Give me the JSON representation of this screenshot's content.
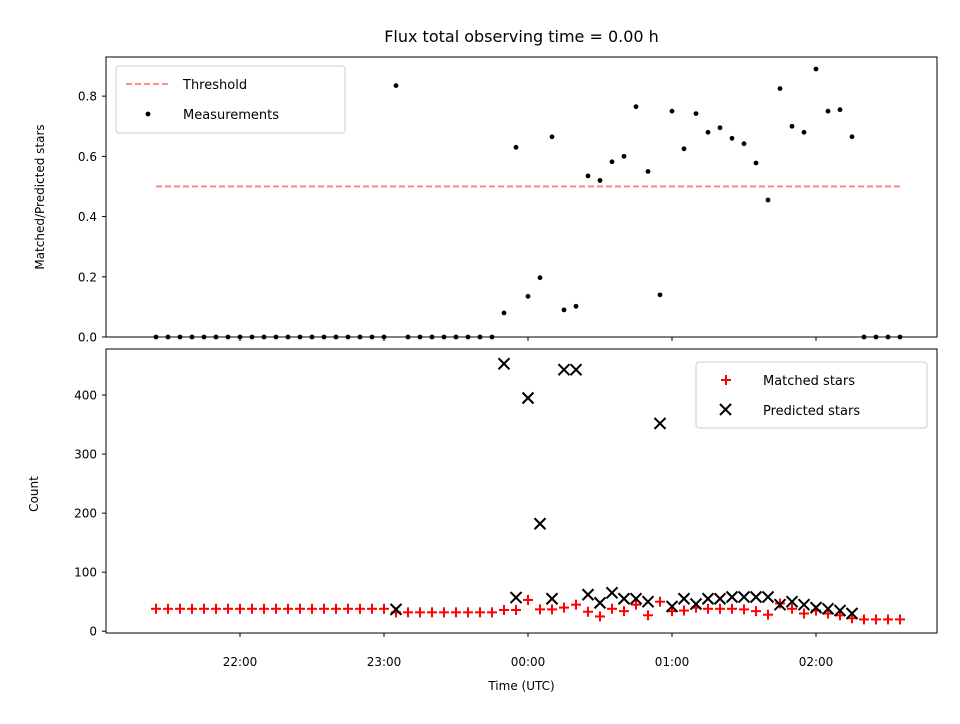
{
  "chart_data": {
    "type": "scatter",
    "title": "Flux total observing time = 0.00 h",
    "xlabel": "Time (UTC)",
    "x_ticks": [
      "22:00",
      "23:00",
      "00:00",
      "01:00",
      "02:00"
    ],
    "colors": {
      "threshold": "#ff7f7f",
      "measurements": "#000000",
      "matched": "#ff0000",
      "predicted": "#000000"
    },
    "top": {
      "ylabel": "Matched/Predicted stars",
      "ylim": [
        0,
        0.93
      ],
      "y_ticks": [
        "0.0",
        "0.2",
        "0.4",
        "0.6",
        "0.8"
      ],
      "legend": {
        "position": "upper-left",
        "entries": [
          "Threshold",
          "Measurements"
        ]
      },
      "threshold": {
        "value": 0.5,
        "x_start": "21:25",
        "x_end": "02:35"
      },
      "measurements": [
        [
          "21:25",
          0
        ],
        [
          "21:30",
          0
        ],
        [
          "21:35",
          0
        ],
        [
          "21:40",
          0
        ],
        [
          "21:45",
          0
        ],
        [
          "21:50",
          0
        ],
        [
          "21:55",
          0
        ],
        [
          "22:00",
          0
        ],
        [
          "22:05",
          0
        ],
        [
          "22:10",
          0
        ],
        [
          "22:15",
          0
        ],
        [
          "22:20",
          0
        ],
        [
          "22:25",
          0
        ],
        [
          "22:30",
          0
        ],
        [
          "22:35",
          0
        ],
        [
          "22:40",
          0
        ],
        [
          "22:45",
          0
        ],
        [
          "22:50",
          0
        ],
        [
          "22:55",
          0
        ],
        [
          "23:00",
          0
        ],
        [
          "23:05",
          0.835
        ],
        [
          "23:10",
          0
        ],
        [
          "23:15",
          0
        ],
        [
          "23:20",
          0
        ],
        [
          "23:25",
          0
        ],
        [
          "23:30",
          0
        ],
        [
          "23:35",
          0
        ],
        [
          "23:40",
          0
        ],
        [
          "23:45",
          0
        ],
        [
          "23:50",
          0.08
        ],
        [
          "23:55",
          0.63
        ],
        [
          "00:00",
          0.135
        ],
        [
          "00:05",
          0.197
        ],
        [
          "00:10",
          0.665
        ],
        [
          "00:15",
          0.09
        ],
        [
          "00:20",
          0.102
        ],
        [
          "00:25",
          0.535
        ],
        [
          "00:30",
          0.52
        ],
        [
          "00:35",
          0.582
        ],
        [
          "00:40",
          0.6
        ],
        [
          "00:45",
          0.765
        ],
        [
          "00:50",
          0.55
        ],
        [
          "00:55",
          0.14
        ],
        [
          "01:00",
          0.75
        ],
        [
          "01:05",
          0.625
        ],
        [
          "01:10",
          0.742
        ],
        [
          "01:15",
          0.68
        ],
        [
          "01:20",
          0.695
        ],
        [
          "01:25",
          0.66
        ],
        [
          "01:30",
          0.642
        ],
        [
          "01:35",
          0.578
        ],
        [
          "01:40",
          0.455
        ],
        [
          "01:45",
          0.825
        ],
        [
          "01:50",
          0.7
        ],
        [
          "01:55",
          0.68
        ],
        [
          "02:00",
          0.89
        ],
        [
          "02:05",
          0.75
        ],
        [
          "02:10",
          0.755
        ],
        [
          "02:15",
          0.665
        ],
        [
          "02:20",
          0
        ],
        [
          "02:25",
          0
        ],
        [
          "02:30",
          0
        ],
        [
          "02:35",
          0
        ]
      ]
    },
    "bottom": {
      "ylabel": "Count",
      "ylim": [
        -3,
        478
      ],
      "y_ticks": [
        "0",
        "100",
        "200",
        "300",
        "400"
      ],
      "legend": {
        "position": "upper-right",
        "entries": [
          "Matched stars",
          "Predicted stars"
        ]
      },
      "matched": [
        [
          "21:25",
          38
        ],
        [
          "21:30",
          38
        ],
        [
          "21:35",
          38
        ],
        [
          "21:40",
          38
        ],
        [
          "21:45",
          38
        ],
        [
          "21:50",
          38
        ],
        [
          "21:55",
          38
        ],
        [
          "22:00",
          38
        ],
        [
          "22:05",
          38
        ],
        [
          "22:10",
          38
        ],
        [
          "22:15",
          38
        ],
        [
          "22:20",
          38
        ],
        [
          "22:25",
          38
        ],
        [
          "22:30",
          38
        ],
        [
          "22:35",
          38
        ],
        [
          "22:40",
          38
        ],
        [
          "22:45",
          38
        ],
        [
          "22:50",
          38
        ],
        [
          "22:55",
          38
        ],
        [
          "23:00",
          38
        ],
        [
          "23:05",
          32
        ],
        [
          "23:10",
          32
        ],
        [
          "23:15",
          32
        ],
        [
          "23:20",
          32
        ],
        [
          "23:25",
          32
        ],
        [
          "23:30",
          32
        ],
        [
          "23:35",
          32
        ],
        [
          "23:40",
          32
        ],
        [
          "23:45",
          32
        ],
        [
          "23:50",
          36
        ],
        [
          "23:55",
          36
        ],
        [
          "00:00",
          53
        ],
        [
          "00:05",
          37
        ],
        [
          "00:10",
          37
        ],
        [
          "00:15",
          40
        ],
        [
          "00:20",
          45
        ],
        [
          "00:25",
          33
        ],
        [
          "00:30",
          25
        ],
        [
          "00:35",
          38
        ],
        [
          "00:40",
          34
        ],
        [
          "00:45",
          45
        ],
        [
          "00:50",
          27
        ],
        [
          "00:55",
          50
        ],
        [
          "01:00",
          34
        ],
        [
          "01:05",
          35
        ],
        [
          "01:10",
          40
        ],
        [
          "01:15",
          38
        ],
        [
          "01:20",
          38
        ],
        [
          "01:25",
          38
        ],
        [
          "01:30",
          37
        ],
        [
          "01:35",
          34
        ],
        [
          "01:40",
          28
        ],
        [
          "01:45",
          47
        ],
        [
          "01:50",
          38
        ],
        [
          "01:55",
          30
        ],
        [
          "02:00",
          35
        ],
        [
          "02:05",
          30
        ],
        [
          "02:10",
          27
        ],
        [
          "02:15",
          22
        ],
        [
          "02:20",
          20
        ],
        [
          "02:25",
          20
        ],
        [
          "02:30",
          20
        ],
        [
          "02:35",
          20
        ]
      ],
      "predicted": [
        [
          "23:05",
          37
        ],
        [
          "23:50",
          453
        ],
        [
          "23:55",
          57
        ],
        [
          "00:00",
          395
        ],
        [
          "00:05",
          182
        ],
        [
          "00:10",
          55
        ],
        [
          "00:15",
          443
        ],
        [
          "00:20",
          443
        ],
        [
          "00:25",
          62
        ],
        [
          "00:30",
          48
        ],
        [
          "00:35",
          65
        ],
        [
          "00:40",
          55
        ],
        [
          "00:45",
          55
        ],
        [
          "00:50",
          50
        ],
        [
          "00:55",
          352
        ],
        [
          "01:00",
          42
        ],
        [
          "01:05",
          55
        ],
        [
          "01:10",
          46
        ],
        [
          "01:15",
          55
        ],
        [
          "01:20",
          55
        ],
        [
          "01:25",
          58
        ],
        [
          "01:30",
          58
        ],
        [
          "01:35",
          58
        ],
        [
          "01:40",
          58
        ],
        [
          "01:45",
          45
        ],
        [
          "01:50",
          50
        ],
        [
          "01:55",
          45
        ],
        [
          "02:00",
          40
        ],
        [
          "02:05",
          38
        ],
        [
          "02:10",
          35
        ],
        [
          "02:15",
          30
        ]
      ]
    }
  }
}
